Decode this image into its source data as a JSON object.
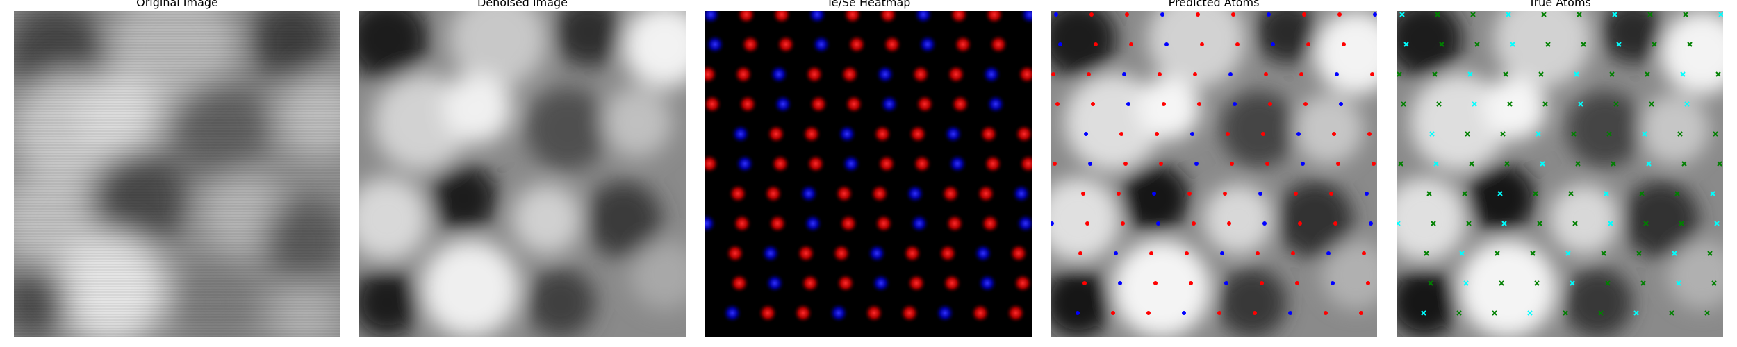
{
  "figure": {
    "panels": [
      {
        "title": "Original Image"
      },
      {
        "title": "Denoised Image"
      },
      {
        "title": "Te/Se Heatmap"
      },
      {
        "title": "Predicted Atoms"
      },
      {
        "title": "True Atoms"
      }
    ]
  },
  "colors": {
    "heatmap_red": "#ff1a1a",
    "heatmap_blue": "#1a1aff",
    "predicted_red": "#ff0000",
    "predicted_blue": "#0000ff",
    "true_green": "#008000",
    "true_cyan": "#00ffff"
  },
  "icons": {
    "predicted_marker": "dot",
    "true_marker": "x-cross"
  }
}
